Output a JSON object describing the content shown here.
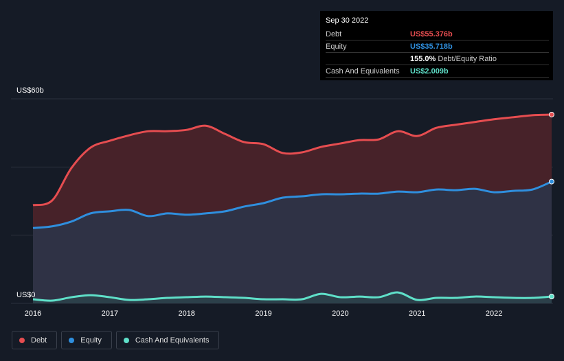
{
  "chart_data": {
    "type": "line",
    "x": [
      2016,
      2016.25,
      2016.5,
      2016.75,
      2017,
      2017.25,
      2017.5,
      2017.75,
      2018,
      2018.25,
      2018.5,
      2018.75,
      2019,
      2019.25,
      2019.5,
      2019.75,
      2020,
      2020.25,
      2020.5,
      2020.75,
      2021,
      2021.25,
      2021.5,
      2021.75,
      2022,
      2022.25,
      2022.5,
      2022.75
    ],
    "series": [
      {
        "name": "Debt",
        "color": "#e64d50",
        "area": "#4a2329",
        "values": [
          28.8,
          30.2,
          39.7,
          45.7,
          47.7,
          49.3,
          50.5,
          50.5,
          50.9,
          52.1,
          49.7,
          47.3,
          46.7,
          44.1,
          44.3,
          45.9,
          46.9,
          47.9,
          48.1,
          50.5,
          49.1,
          51.5,
          52.4,
          53.2,
          54.0,
          54.6,
          55.2,
          55.376
        ]
      },
      {
        "name": "Equity",
        "color": "#2f8fde",
        "area": "#2e3447",
        "values": [
          22.1,
          22.6,
          24.0,
          26.4,
          27.0,
          27.4,
          25.6,
          26.4,
          26.0,
          26.4,
          27.0,
          28.4,
          29.4,
          31.0,
          31.4,
          32.0,
          32.0,
          32.2,
          32.2,
          32.8,
          32.6,
          33.4,
          33.2,
          33.6,
          32.6,
          33.0,
          33.4,
          35.718
        ]
      },
      {
        "name": "Cash And Equivalents",
        "color": "#5fe0c9",
        "area": "#2b4a4e",
        "values": [
          1.2,
          0.8,
          1.8,
          2.4,
          1.8,
          1.0,
          1.2,
          1.6,
          1.8,
          2.0,
          1.8,
          1.6,
          1.2,
          1.2,
          1.2,
          2.8,
          1.8,
          2.0,
          1.8,
          3.2,
          1.0,
          1.6,
          1.6,
          2.0,
          1.8,
          1.6,
          1.6,
          2.009
        ]
      }
    ],
    "xlim": [
      2016,
      2022.75
    ],
    "xticks": [
      2016,
      2017,
      2018,
      2019,
      2020,
      2021,
      2022
    ],
    "ylim": [
      0,
      60
    ],
    "yticks": [
      {
        "value": 0,
        "label": "US$0"
      },
      {
        "value": 60,
        "label": "US$60b"
      }
    ],
    "gridlines": [
      0,
      20,
      40,
      60
    ],
    "tooltip": {
      "date": "Sep 30 2022",
      "rows": [
        {
          "label": "Debt",
          "value": "US$55.376b"
        },
        {
          "label": "Equity",
          "value": "US$35.718b"
        }
      ],
      "ratio": "155.0%",
      "ratio_label": "Debt/Equity Ratio",
      "cash": {
        "label": "Cash And Equivalents",
        "value": "US$2.009b"
      }
    }
  }
}
